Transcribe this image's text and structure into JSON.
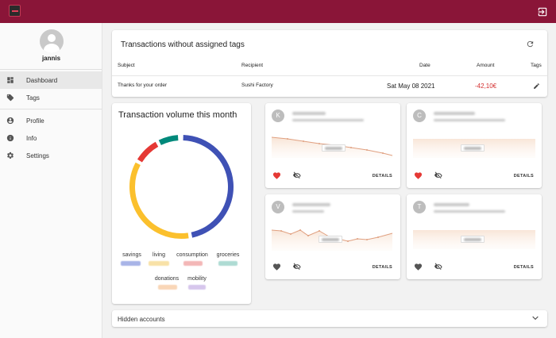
{
  "header": {
    "logout_icon": "logout-icon"
  },
  "user": {
    "name": "jannis"
  },
  "nav": [
    {
      "label": "Dashboard",
      "icon": "dashboard-icon"
    },
    {
      "label": "Tags",
      "icon": "tag-icon"
    },
    {
      "label": "Profile",
      "icon": "account-icon"
    },
    {
      "label": "Info",
      "icon": "info-icon"
    },
    {
      "label": "Settings",
      "icon": "gear-icon"
    }
  ],
  "transactions": {
    "title": "Transactions without assigned tags",
    "headers": {
      "subject": "Subject",
      "recipient": "Recipient",
      "date": "Date",
      "amount": "Amount",
      "tags": "Tags"
    },
    "rows": [
      {
        "subject": "Thanks for your order",
        "recipient": "Sushi Factory",
        "date": "Sat May 08 2021",
        "amount": "-42,10€"
      }
    ]
  },
  "volume": {
    "title": "Transaction volume this month",
    "labels": [
      "savings",
      "living",
      "consumption",
      "groceries",
      "donations",
      "mobility"
    ],
    "colors": {
      "savings": "#3f51b5",
      "living": "#fbc02d",
      "consumption": "#e53935",
      "groceries": "#00897b"
    }
  },
  "accounts": [
    {
      "initial": "K",
      "favorite": true
    },
    {
      "initial": "C",
      "favorite": true
    },
    {
      "initial": "V",
      "favorite": false
    },
    {
      "initial": "T",
      "favorite": false
    }
  ],
  "account_actions": {
    "details_label": "DETAILS"
  },
  "hidden_accounts": {
    "label": "Hidden accounts"
  },
  "colors": {
    "brand": "#8a1538",
    "negative": "#d32f2f",
    "heart": "#e53935"
  }
}
